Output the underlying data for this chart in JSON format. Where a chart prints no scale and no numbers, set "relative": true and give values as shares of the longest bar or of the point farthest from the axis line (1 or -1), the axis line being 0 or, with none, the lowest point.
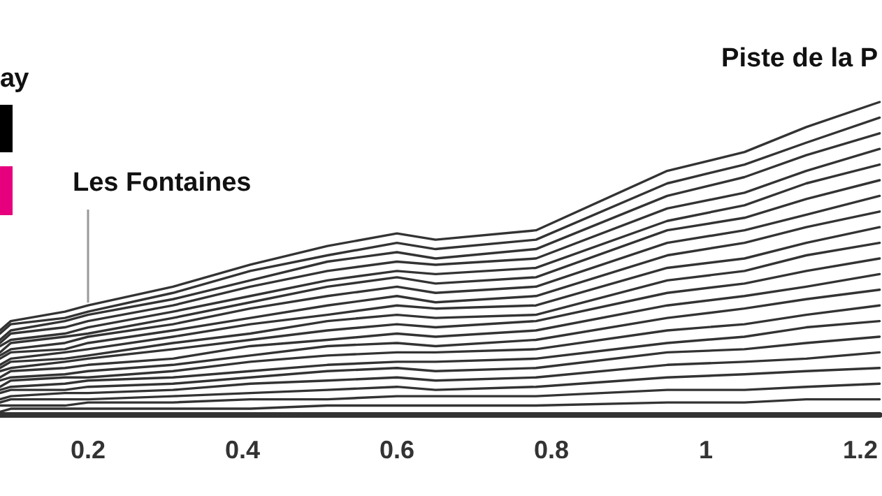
{
  "chart_data": {
    "type": "line",
    "relative": true,
    "legend_title": "ay",
    "annotations": [
      {
        "text": "Les Fontaines",
        "x": 0.2,
        "y": 0.35
      },
      "Piste de la P"
    ],
    "x": [
      0.086,
      0.1,
      0.17,
      0.2,
      0.31,
      0.41,
      0.51,
      0.6,
      0.65,
      0.78,
      0.95,
      1.05,
      1.13,
      1.225
    ],
    "xlim": [
      0.086,
      1.225
    ],
    "xticks": [
      0.2,
      0.4,
      0.6,
      0.8,
      1,
      1.2
    ],
    "series": [
      {
        "color": "#333333",
        "values": [
          0.27,
          0.3,
          0.33,
          0.35,
          0.41,
          0.48,
          0.54,
          0.58,
          0.56,
          0.59,
          0.78,
          0.84,
          0.92,
          1.0
        ]
      },
      {
        "color": "#333333",
        "values": [
          0.26,
          0.29,
          0.31,
          0.33,
          0.39,
          0.46,
          0.51,
          0.55,
          0.53,
          0.56,
          0.74,
          0.8,
          0.87,
          0.95
        ]
      },
      {
        "color": "#333333",
        "values": [
          0.24,
          0.27,
          0.3,
          0.32,
          0.37,
          0.43,
          0.49,
          0.52,
          0.5,
          0.53,
          0.7,
          0.76,
          0.83,
          0.9
        ]
      },
      {
        "color": "#333333",
        "values": [
          0.23,
          0.26,
          0.28,
          0.3,
          0.35,
          0.41,
          0.46,
          0.49,
          0.48,
          0.5,
          0.66,
          0.71,
          0.78,
          0.85
        ]
      },
      {
        "color": "#333333",
        "values": [
          0.22,
          0.24,
          0.26,
          0.28,
          0.33,
          0.38,
          0.43,
          0.46,
          0.45,
          0.47,
          0.62,
          0.67,
          0.74,
          0.8
        ]
      },
      {
        "color": "#333333",
        "values": [
          0.2,
          0.23,
          0.25,
          0.26,
          0.31,
          0.36,
          0.41,
          0.44,
          0.42,
          0.44,
          0.59,
          0.63,
          0.69,
          0.75
        ]
      },
      {
        "color": "#333333",
        "values": [
          0.19,
          0.21,
          0.23,
          0.25,
          0.29,
          0.34,
          0.38,
          0.41,
          0.39,
          0.41,
          0.55,
          0.59,
          0.64,
          0.7
        ]
      },
      {
        "color": "#333333",
        "values": [
          0.18,
          0.2,
          0.21,
          0.23,
          0.27,
          0.31,
          0.35,
          0.38,
          0.36,
          0.38,
          0.51,
          0.55,
          0.6,
          0.65
        ]
      },
      {
        "color": "#333333",
        "values": [
          0.16,
          0.18,
          0.2,
          0.21,
          0.25,
          0.29,
          0.32,
          0.35,
          0.34,
          0.35,
          0.47,
          0.5,
          0.55,
          0.6
        ]
      },
      {
        "color": "#333333",
        "values": [
          0.15,
          0.17,
          0.18,
          0.19,
          0.23,
          0.26,
          0.3,
          0.32,
          0.31,
          0.32,
          0.43,
          0.46,
          0.51,
          0.55
        ]
      },
      {
        "color": "#333333",
        "values": [
          0.14,
          0.15,
          0.17,
          0.18,
          0.21,
          0.24,
          0.27,
          0.29,
          0.28,
          0.3,
          0.39,
          0.42,
          0.46,
          0.5
        ]
      },
      {
        "color": "#333333",
        "values": [
          0.12,
          0.14,
          0.15,
          0.16,
          0.18,
          0.22,
          0.24,
          0.26,
          0.25,
          0.27,
          0.35,
          0.38,
          0.41,
          0.45
        ]
      },
      {
        "color": "#333333",
        "values": [
          0.11,
          0.12,
          0.13,
          0.14,
          0.16,
          0.19,
          0.22,
          0.23,
          0.22,
          0.24,
          0.31,
          0.34,
          0.37,
          0.4
        ]
      },
      {
        "color": "#333333",
        "values": [
          0.09,
          0.11,
          0.12,
          0.12,
          0.14,
          0.17,
          0.19,
          0.2,
          0.2,
          0.21,
          0.27,
          0.29,
          0.32,
          0.35
        ]
      },
      {
        "color": "#333333",
        "values": [
          0.08,
          0.09,
          0.1,
          0.11,
          0.12,
          0.14,
          0.16,
          0.17,
          0.17,
          0.18,
          0.23,
          0.25,
          0.28,
          0.3
        ]
      },
      {
        "color": "#333333",
        "values": [
          0.07,
          0.08,
          0.08,
          0.09,
          0.1,
          0.12,
          0.14,
          0.15,
          0.14,
          0.15,
          0.2,
          0.21,
          0.23,
          0.25
        ]
      },
      {
        "color": "#333333",
        "values": [
          0.05,
          0.06,
          0.07,
          0.07,
          0.08,
          0.1,
          0.11,
          0.12,
          0.11,
          0.12,
          0.16,
          0.17,
          0.18,
          0.2
        ]
      },
      {
        "color": "#333333",
        "values": [
          0.04,
          0.05,
          0.05,
          0.05,
          0.06,
          0.07,
          0.08,
          0.09,
          0.08,
          0.09,
          0.12,
          0.13,
          0.14,
          0.15
        ]
      },
      {
        "color": "#333333",
        "values": [
          0.03,
          0.03,
          0.03,
          0.04,
          0.04,
          0.05,
          0.05,
          0.06,
          0.06,
          0.06,
          0.08,
          0.08,
          0.09,
          0.1
        ]
      },
      {
        "color": "#333333",
        "values": [
          0.01,
          0.02,
          0.02,
          0.02,
          0.02,
          0.02,
          0.03,
          0.03,
          0.03,
          0.03,
          0.04,
          0.04,
          0.05,
          0.05
        ]
      }
    ]
  }
}
